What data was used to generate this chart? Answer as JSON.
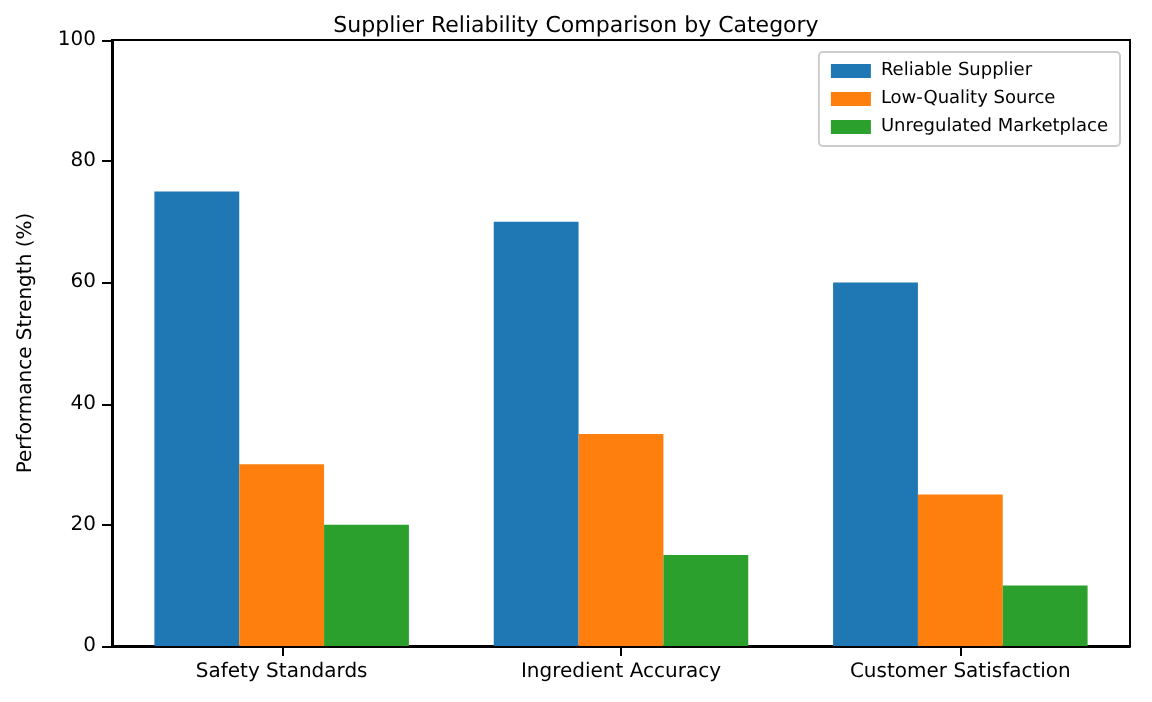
{
  "chart_data": {
    "type": "bar",
    "title": "Supplier Reliability Comparison by Category",
    "ylabel": "Performance Strength (%)",
    "categories": [
      "Safety Standards",
      "Ingredient Accuracy",
      "Customer Satisfaction"
    ],
    "series": [
      {
        "name": "Reliable Supplier",
        "color": "#1f77b4",
        "values": [
          75,
          70,
          60
        ]
      },
      {
        "name": "Low-Quality Source",
        "color": "#ff7f0e",
        "values": [
          30,
          35,
          25
        ]
      },
      {
        "name": "Unregulated Marketplace",
        "color": "#2ca02c",
        "values": [
          20,
          15,
          10
        ]
      }
    ],
    "ylim": [
      0,
      100
    ],
    "yticks": [
      0,
      20,
      40,
      60,
      80,
      100
    ],
    "grid": false,
    "legend": "top right"
  }
}
